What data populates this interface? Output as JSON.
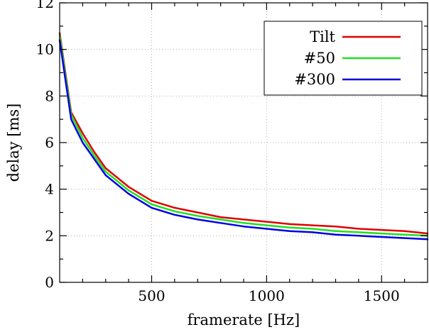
{
  "chart_data": {
    "type": "line",
    "title": "",
    "xlabel": "framerate [Hz]",
    "ylabel": "delay [ms]",
    "xlim": [
      100,
      1700
    ],
    "ylim": [
      0,
      12
    ],
    "x_ticks": [
      500,
      1000,
      1500
    ],
    "y_ticks": [
      0,
      2,
      4,
      6,
      8,
      10,
      12
    ],
    "grid": true,
    "legend_position": "top-right",
    "series": [
      {
        "name": "Tilt",
        "color": "#e00000",
        "x": [
          100,
          150,
          200,
          250,
          300,
          400,
          500,
          600,
          700,
          800,
          900,
          1000,
          1100,
          1200,
          1300,
          1400,
          1500,
          1600,
          1700
        ],
        "y": [
          10.7,
          7.3,
          6.4,
          5.6,
          4.9,
          4.1,
          3.5,
          3.2,
          3.0,
          2.8,
          2.7,
          2.6,
          2.5,
          2.45,
          2.4,
          2.3,
          2.25,
          2.2,
          2.1
        ]
      },
      {
        "name": "#50",
        "color": "#20e020",
        "x": [
          100,
          150,
          200,
          250,
          300,
          400,
          500,
          600,
          700,
          800,
          900,
          1000,
          1100,
          1200,
          1300,
          1400,
          1500,
          1600,
          1700
        ],
        "y": [
          10.6,
          7.2,
          6.2,
          5.45,
          4.75,
          3.95,
          3.35,
          3.05,
          2.85,
          2.7,
          2.55,
          2.45,
          2.35,
          2.3,
          2.2,
          2.15,
          2.1,
          2.05,
          2.0
        ]
      },
      {
        "name": "#300",
        "color": "#0000e0",
        "x": [
          100,
          150,
          200,
          250,
          300,
          400,
          500,
          600,
          700,
          800,
          900,
          1000,
          1100,
          1200,
          1300,
          1400,
          1500,
          1600,
          1700
        ],
        "y": [
          10.4,
          7.0,
          6.0,
          5.3,
          4.6,
          3.8,
          3.2,
          2.9,
          2.7,
          2.55,
          2.4,
          2.3,
          2.2,
          2.15,
          2.05,
          2.0,
          1.95,
          1.9,
          1.85
        ]
      }
    ]
  }
}
